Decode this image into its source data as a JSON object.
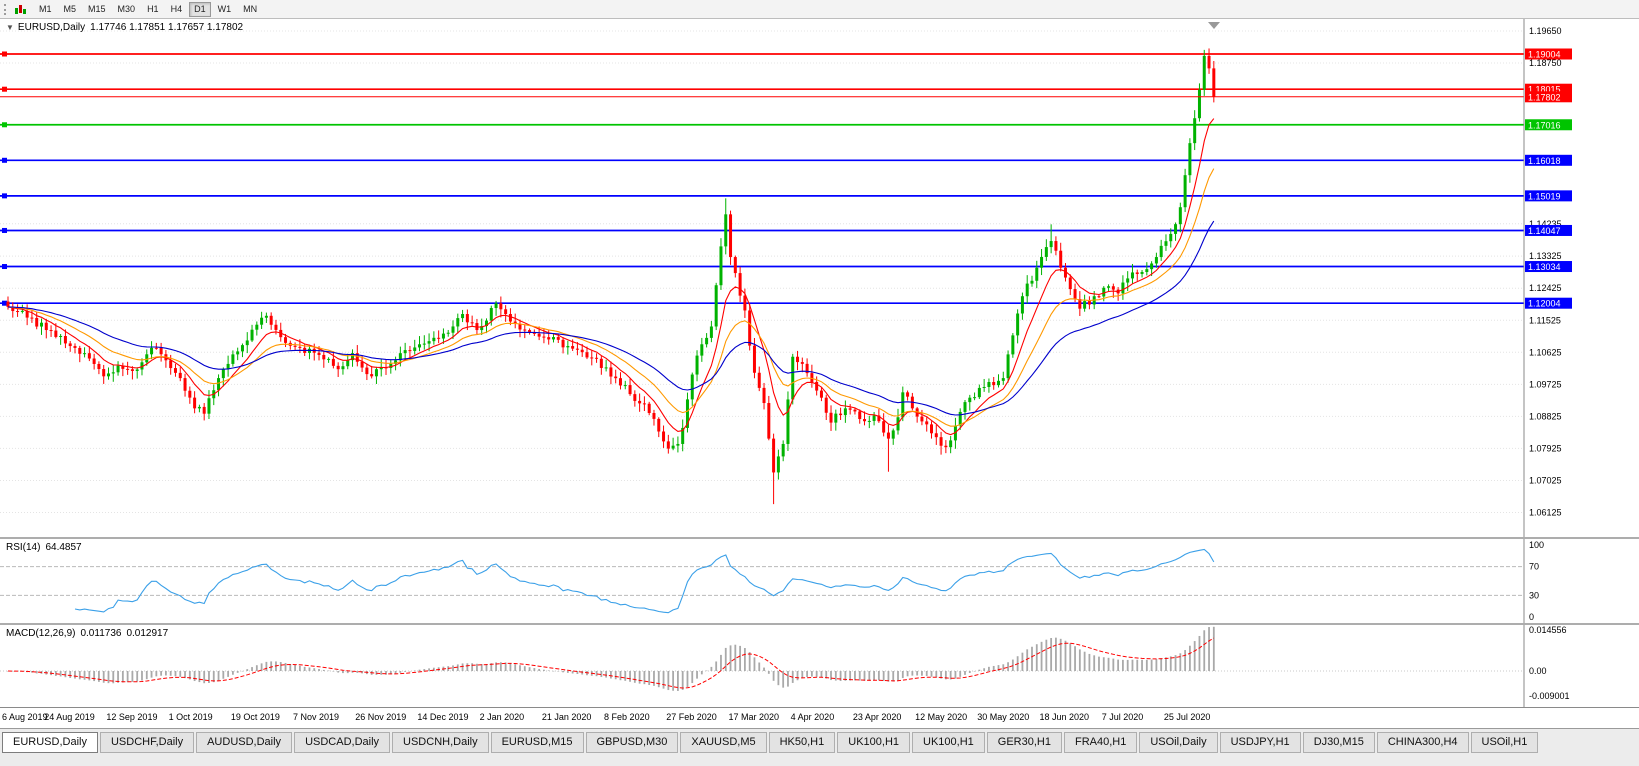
{
  "toolbar": {
    "timeframes": [
      {
        "label": "M1",
        "active": false
      },
      {
        "label": "M5",
        "active": false
      },
      {
        "label": "M15",
        "active": false
      },
      {
        "label": "M30",
        "active": false
      },
      {
        "label": "H1",
        "active": false
      },
      {
        "label": "H4",
        "active": false
      },
      {
        "label": "D1",
        "active": true
      },
      {
        "label": "W1",
        "active": false
      },
      {
        "label": "MN",
        "active": false
      }
    ]
  },
  "main_chart": {
    "collapse_arrow": "▼",
    "title": "EURUSD,Daily",
    "ohlc_text": "1.17746 1.17851 1.17657 1.17802"
  },
  "rsi_panel": {
    "title": "RSI(14)",
    "value": "64.4857",
    "axis_labels": [
      "100",
      "70",
      "30",
      "0"
    ]
  },
  "macd_panel": {
    "title": "MACD(12,26,9)",
    "value_main": "0.011736",
    "value_signal": "0.012917",
    "axis_labels": [
      "0.014556",
      "0.00",
      "-0.009001"
    ]
  },
  "date_axis": {
    "labels": [
      "6 Aug 2019",
      "24 Aug 2019",
      "12 Sep 2019",
      "1 Oct 2019",
      "19 Oct 2019",
      "7 Nov 2019",
      "26 Nov 2019",
      "14 Dec 2019",
      "2 Jan 2020",
      "21 Jan 2020",
      "8 Feb 2020",
      "27 Feb 2020",
      "17 Mar 2020",
      "4 Apr 2020",
      "23 Apr 2020",
      "12 May 2020",
      "30 May 2020",
      "18 Jun 2020",
      "7 Jul 2020",
      "25 Jul 2020"
    ]
  },
  "tabs": [
    {
      "label": "EURUSD,Daily",
      "active": true
    },
    {
      "label": "USDCHF,Daily",
      "active": false
    },
    {
      "label": "AUDUSD,Daily",
      "active": false
    },
    {
      "label": "USDCAD,Daily",
      "active": false
    },
    {
      "label": "USDCNH,Daily",
      "active": false
    },
    {
      "label": "EURUSD,M15",
      "active": false
    },
    {
      "label": "GBPUSD,M30",
      "active": false
    },
    {
      "label": "XAUUSD,M5",
      "active": false
    },
    {
      "label": "HK50,H1",
      "active": false
    },
    {
      "label": "UK100,H1",
      "active": false
    },
    {
      "label": "UK100,H1",
      "active": false
    },
    {
      "label": "GER30,H1",
      "active": false
    },
    {
      "label": "FRA40,H1",
      "active": false
    },
    {
      "label": "USOil,Daily",
      "active": false
    },
    {
      "label": "USDJPY,H1",
      "active": false
    },
    {
      "label": "DJ30,M15",
      "active": false
    },
    {
      "label": "CHINA300,H4",
      "active": false
    },
    {
      "label": "USOil,H1",
      "active": false
    }
  ],
  "chart_data": {
    "type": "candlestick",
    "symbol": "EURUSD",
    "timeframe": "Daily",
    "display_ohlc": {
      "open": 1.17746,
      "high": 1.17851,
      "low": 1.17657,
      "close": 1.17802
    },
    "current_price": 1.17802,
    "colors": {
      "up": "#00b200",
      "down": "#ff0000"
    },
    "y_axis_ticks": [
      1.1965,
      1.1875,
      1.14235,
      1.13325,
      1.12425,
      1.11525,
      1.10625,
      1.09725,
      1.08825,
      1.07925,
      1.07025,
      1.06125
    ],
    "levels": [
      {
        "price": 1.19004,
        "color": "#ff0000"
      },
      {
        "price": 1.18015,
        "color": "#ff0000"
      },
      {
        "price": 1.17016,
        "color": "#00c400"
      },
      {
        "price": 1.16018,
        "color": "#0000ff"
      },
      {
        "price": 1.15019,
        "color": "#0000ff"
      },
      {
        "price": 1.14047,
        "color": "#0000ff"
      },
      {
        "price": 1.13034,
        "color": "#0000ff"
      },
      {
        "price": 1.12004,
        "color": "#0000ff"
      }
    ],
    "candle_count": 253,
    "price_path_waypoints": [
      [
        0,
        1.119
      ],
      [
        4,
        1.116
      ],
      [
        8,
        1.1125
      ],
      [
        13,
        1.108
      ],
      [
        17,
        1.1045
      ],
      [
        20,
        1.0995
      ],
      [
        23,
        1.1025
      ],
      [
        26,
        1.101
      ],
      [
        30,
        1.1075
      ],
      [
        33,
        1.104
      ],
      [
        36,
        1.099
      ],
      [
        39,
        1.0905
      ],
      [
        41,
        1.089
      ],
      [
        44,
        1.099
      ],
      [
        48,
        1.1065
      ],
      [
        52,
        1.114
      ],
      [
        54,
        1.1165
      ],
      [
        57,
        1.1105
      ],
      [
        61,
        1.1075
      ],
      [
        65,
        1.1055
      ],
      [
        69,
        1.1015
      ],
      [
        72,
        1.106
      ],
      [
        76,
        1.0995
      ],
      [
        78,
        1.102
      ],
      [
        82,
        1.106
      ],
      [
        86,
        1.1085
      ],
      [
        91,
        1.1115
      ],
      [
        95,
        1.117
      ],
      [
        98,
        1.1125
      ],
      [
        102,
        1.12
      ],
      [
        104,
        1.117
      ],
      [
        108,
        1.1125
      ],
      [
        112,
        1.1105
      ],
      [
        117,
        1.108
      ],
      [
        121,
        1.1048
      ],
      [
        125,
        1.102
      ],
      [
        130,
        1.0945
      ],
      [
        133,
        1.0918
      ],
      [
        136,
        1.084
      ],
      [
        138,
        1.0792
      ],
      [
        140,
        1.0805
      ],
      [
        141,
        1.085
      ],
      [
        143,
        1.1
      ],
      [
        145,
        1.1085
      ],
      [
        147,
        1.1135
      ],
      [
        149,
        1.136
      ],
      [
        150,
        1.145
      ],
      [
        151,
        1.133
      ],
      [
        152,
        1.1285
      ],
      [
        154,
        1.118
      ],
      [
        156,
        1.1005
      ],
      [
        158,
        1.092
      ],
      [
        159,
        1.082
      ],
      [
        160,
        1.0725
      ],
      [
        161,
        1.077
      ],
      [
        162,
        1.0805
      ],
      [
        163,
        1.093
      ],
      [
        164,
        1.105
      ],
      [
        165,
        1.1035
      ],
      [
        166,
        1.103
      ],
      [
        169,
        1.0955
      ],
      [
        172,
        1.0865
      ],
      [
        175,
        1.0905
      ],
      [
        178,
        1.0875
      ],
      [
        181,
        1.0885
      ],
      [
        184,
        1.082
      ],
      [
        186,
        1.088
      ],
      [
        187,
        1.095
      ],
      [
        189,
        1.0905
      ],
      [
        193,
        1.0835
      ],
      [
        195,
        1.08
      ],
      [
        197,
        1.0815
      ],
      [
        199,
        1.0895
      ],
      [
        201,
        1.0935
      ],
      [
        204,
        1.0965
      ],
      [
        208,
        1.099
      ],
      [
        210,
        1.111
      ],
      [
        212,
        1.122
      ],
      [
        215,
        1.13
      ],
      [
        218,
        1.1375
      ],
      [
        220,
        1.13
      ],
      [
        222,
        1.124
      ],
      [
        224,
        1.1185
      ],
      [
        227,
        1.122
      ],
      [
        230,
        1.1248
      ],
      [
        232,
        1.1228
      ],
      [
        234,
        1.127
      ],
      [
        237,
        1.1288
      ],
      [
        240,
        1.133
      ],
      [
        243,
        1.1395
      ],
      [
        245,
        1.147
      ],
      [
        246,
        1.156
      ],
      [
        247,
        1.165
      ],
      [
        248,
        1.172
      ],
      [
        249,
        1.18
      ],
      [
        250,
        1.1895
      ],
      [
        251,
        1.186
      ],
      [
        252,
        1.17802
      ]
    ],
    "wick_extremes": [
      {
        "i": 41,
        "low": 1.0879
      },
      {
        "i": 138,
        "low": 1.0778
      },
      {
        "i": 150,
        "high": 1.1495
      },
      {
        "i": 160,
        "low": 1.0636
      },
      {
        "i": 184,
        "low": 1.0727
      },
      {
        "i": 195,
        "low": 1.0775
      },
      {
        "i": 218,
        "high": 1.1422
      },
      {
        "i": 250,
        "high": 1.1912
      },
      {
        "i": 251,
        "high": 1.1916
      }
    ],
    "moving_averages": [
      {
        "period": 8,
        "color": "#ff0000"
      },
      {
        "period": 17,
        "color": "#ff9900"
      },
      {
        "period": 34,
        "color": "#0000cc"
      }
    ],
    "rsi": {
      "period": 14,
      "levels": [
        70,
        30
      ],
      "range": [
        0,
        100
      ],
      "current": 64.4857,
      "color": "#3ba0e8"
    },
    "macd": {
      "fast": 12,
      "slow": 26,
      "signal": 9,
      "current_main": 0.011736,
      "current_signal": 0.012917,
      "axis_max": 0.014556,
      "axis_min": -0.009001
    }
  }
}
